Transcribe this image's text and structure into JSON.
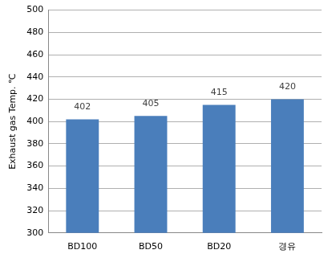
{
  "chart_data": {
    "type": "bar",
    "y_label": "Exhaust gas Temp. ℃",
    "categories": [
      "BD100",
      "BD50",
      "BD20",
      "경유"
    ],
    "values": [
      402,
      405,
      415,
      420
    ],
    "color": "#4a7ebb",
    "ylim": [
      300,
      500
    ],
    "yticks": [
      300,
      320,
      340,
      360,
      380,
      400,
      420,
      440,
      460,
      480,
      500
    ],
    "grid": true,
    "data_labels": true
  }
}
